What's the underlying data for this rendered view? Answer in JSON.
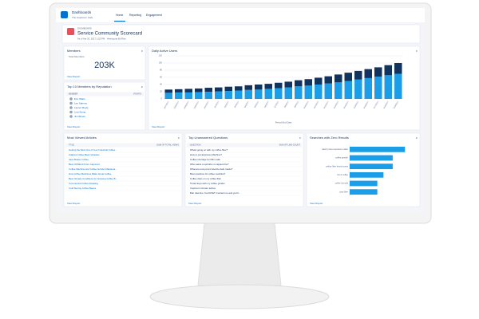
{
  "header": {
    "app": "Dashboards",
    "org": "The Capricorn Cafe",
    "tabs": [
      "Home",
      "Reporting",
      "Engagement"
    ]
  },
  "dashboard": {
    "label": "DASHBOARD",
    "title": "Service Community Scorecard",
    "subtitle": "As of Apr 20, 2017 1:52 PM · Viewing as Ed Rice"
  },
  "members": {
    "title": "Members",
    "subtitle": "Total Members",
    "value": "203K",
    "link": "View Report"
  },
  "top_members": {
    "title": "Top 10 Members by Reputation",
    "columns": [
      "MEMBER",
      "POINTS"
    ],
    "rows": [
      "Erin Watts",
      "Lee Salerno",
      "Lauren Boyle",
      "Lisa Wong",
      "Jim Brown"
    ],
    "link": "View Report"
  },
  "active_users": {
    "title": "Daily Active Users",
    "link": "View Report",
    "chart_data": {
      "type": "bar",
      "stacked": true,
      "x_label": "Period End Date",
      "categories": [
        "3/27/2017",
        "3/28/2017",
        "3/29/2017",
        "3/30/2017",
        "3/31/2017",
        "4/1/2017",
        "4/2/2017",
        "4/3/2017",
        "4/4/2017",
        "4/5/2017",
        "4/6/2017",
        "4/7/2017",
        "4/8/2017",
        "4/9/2017",
        "4/10/2017",
        "4/11/2017",
        "4/12/2017",
        "4/13/2017",
        "4/14/2017",
        "4/15/2017",
        "4/16/2017",
        "4/17/2017",
        "4/18/2017",
        "4/19/2017"
      ],
      "series": [
        {
          "color": "#1b9de8",
          "values": [
            17,
            18,
            18,
            19,
            20,
            21,
            22,
            23,
            25,
            26,
            28,
            30,
            32,
            35,
            37,
            40,
            43,
            46,
            50,
            54,
            58,
            62,
            66,
            70
          ]
        },
        {
          "color": "#12335e",
          "values": [
            9,
            9,
            10,
            10,
            11,
            11,
            12,
            12,
            13,
            14,
            14,
            15,
            16,
            17,
            18,
            19,
            20,
            22,
            23,
            24,
            25,
            26,
            28,
            30
          ]
        }
      ],
      "ylim": [
        0,
        120
      ],
      "yticks": [
        0,
        20,
        40,
        60,
        80,
        100,
        120
      ],
      "grid": true
    }
  },
  "articles": {
    "title": "Most Viewed Articles",
    "columns": [
      "TITLE",
      "SUM OF TOTAL VIEWS"
    ],
    "link": "View Report",
    "rows": [
      "Getting the Most Out of Your Industrial Coffee...",
      "Arabica Coffee Bean Varieties",
      "Java Master Coffee",
      "Best Oil Blend From Capricorn",
      "Coffee Machine and Coffee Grinder Maintena...",
      "How Coffee Machines Make Great Coffee",
      "Best Climate Conditions for Growing Coffee B...",
      "Commercial Coffee Roasting",
      "Cold Storing Coffee Beans"
    ]
  },
  "questions": {
    "title": "Top Unanswered Questions",
    "columns": [
      "QUESTION",
      "SUM OF LIKE COUNT"
    ],
    "link": "View Report",
    "rows": [
      "Whats going on with my coffee filter?",
      "How to put Espresso Machine?",
      "Coffee shortage for Mini Latte",
      "Who wants a sprinkle on cappuccino?",
      "What are everyone's favorite dark roasts?",
      "Best practices for coffee machine?",
      "Coffee drips on my coffee filter",
      "Tinted keys with my coffee grinder",
      "Capricorn Grinder advice",
      "Bob Jasmine: Fat NOW!! Contact me and you'll..."
    ]
  },
  "searches": {
    "title": "Searches with Zero Results",
    "link": "View Report",
    "chart_data": {
      "type": "bar",
      "orientation": "horizontal",
      "color": "#1b9de8",
      "categories": [
        "watch press espresso maker",
        "coffee grinder",
        "yellow filter french press",
        "burnt coffee",
        "coffee formula",
        "java filter"
      ],
      "values": [
        18,
        14,
        14,
        11,
        9,
        9
      ],
      "xlim": [
        0,
        20
      ],
      "grid": true
    }
  }
}
